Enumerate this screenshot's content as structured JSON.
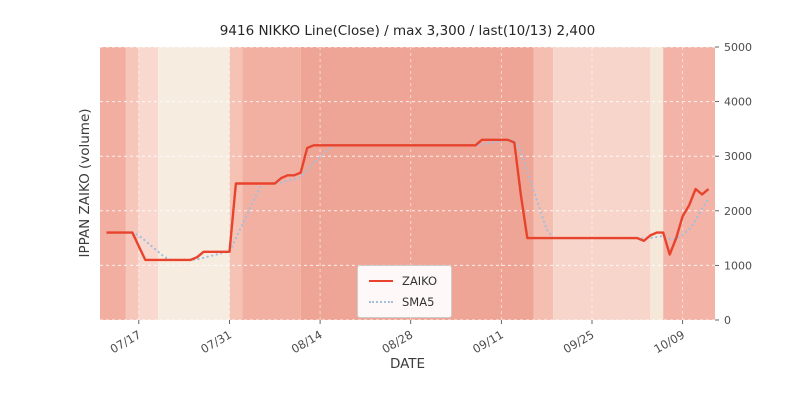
{
  "chart_data": {
    "type": "line",
    "title": "9416 NIKKO Line(Close) / max 3,300 / last(10/13) 2,400",
    "xlabel": "DATE",
    "ylabel": "IPPAN ZAIKO (volume)",
    "ylim": [
      0,
      5000
    ],
    "yticks": [
      0,
      1000,
      2000,
      3000,
      4000,
      5000
    ],
    "ytick_labels": [
      "0",
      "1000",
      "2000",
      "3000",
      "4000",
      "5000"
    ],
    "xtick_labels": [
      "07/17",
      "07/31",
      "08/14",
      "08/28",
      "09/11",
      "09/25",
      "10/09"
    ],
    "grid": true,
    "grid_color": "#ffffff",
    "legend_position": "lower center",
    "dates": [
      "07/12",
      "07/13",
      "07/14",
      "07/15",
      "07/16",
      "07/17",
      "07/18",
      "07/19",
      "07/20",
      "07/21",
      "07/22",
      "07/23",
      "07/24",
      "07/25",
      "07/26",
      "07/27",
      "07/28",
      "07/29",
      "07/30",
      "07/31",
      "08/01",
      "08/02",
      "08/03",
      "08/04",
      "08/05",
      "08/06",
      "08/07",
      "08/08",
      "08/09",
      "08/10",
      "08/11",
      "08/12",
      "08/13",
      "08/14",
      "08/15",
      "08/16",
      "08/17",
      "08/18",
      "08/19",
      "08/20",
      "08/21",
      "08/22",
      "08/23",
      "08/24",
      "08/25",
      "08/26",
      "08/27",
      "08/28",
      "08/29",
      "08/30",
      "08/31",
      "09/01",
      "09/02",
      "09/03",
      "09/04",
      "09/05",
      "09/06",
      "09/07",
      "09/08",
      "09/09",
      "09/10",
      "09/11",
      "09/12",
      "09/13",
      "09/14",
      "09/15",
      "09/16",
      "09/17",
      "09/18",
      "09/19",
      "09/20",
      "09/21",
      "09/22",
      "09/23",
      "09/24",
      "09/25",
      "09/26",
      "09/27",
      "09/28",
      "09/29",
      "09/30",
      "10/01",
      "10/02",
      "10/03",
      "10/04",
      "10/05",
      "10/06",
      "10/07",
      "10/08",
      "10/09",
      "10/10",
      "10/11",
      "10/12",
      "10/13"
    ],
    "series": [
      {
        "name": "ZAIKO",
        "color": "#e8432d",
        "style": "solid",
        "values": [
          1600,
          1600,
          1600,
          1600,
          1600,
          1350,
          1100,
          1100,
          1100,
          1100,
          1100,
          1100,
          1100,
          1100,
          1150,
          1250,
          1250,
          1250,
          1250,
          1250,
          2500,
          2500,
          2500,
          2500,
          2500,
          2500,
          2500,
          2600,
          2650,
          2650,
          2700,
          3150,
          3200,
          3200,
          3200,
          3200,
          3200,
          3200,
          3200,
          3200,
          3200,
          3200,
          3200,
          3200,
          3200,
          3200,
          3200,
          3200,
          3200,
          3200,
          3200,
          3200,
          3200,
          3200,
          3200,
          3200,
          3200,
          3200,
          3300,
          3300,
          3300,
          3300,
          3300,
          3250,
          2300,
          1500,
          1500,
          1500,
          1500,
          1500,
          1500,
          1500,
          1500,
          1500,
          1500,
          1500,
          1500,
          1500,
          1500,
          1500,
          1500,
          1500,
          1500,
          1450,
          1550,
          1600,
          1600,
          1200,
          1500,
          1900,
          2100,
          2400,
          2300,
          2400
        ]
      },
      {
        "name": "SMA5",
        "color": "#a3bfdf",
        "style": "dotted",
        "derived_from": "ZAIKO",
        "window": 5
      }
    ],
    "background_bands": [
      {
        "from": "start",
        "to": "07/15",
        "color": "#f2aea1"
      },
      {
        "from": "07/15",
        "to": "07/17",
        "color": "#f6c6ba"
      },
      {
        "from": "07/17",
        "to": "07/20",
        "color": "#f9d9cf"
      },
      {
        "from": "07/20",
        "to": "07/31",
        "color": "#f6ecdf"
      },
      {
        "from": "07/31",
        "to": "08/02",
        "color": "#f5c2b4"
      },
      {
        "from": "08/02",
        "to": "08/11",
        "color": "#f2b0a2"
      },
      {
        "from": "08/11",
        "to": "09/16",
        "color": "#efa595"
      },
      {
        "from": "09/16",
        "to": "09/19",
        "color": "#f4bfb0"
      },
      {
        "from": "09/19",
        "to": "10/04",
        "color": "#f8d5ca"
      },
      {
        "from": "10/04",
        "to": "10/06",
        "color": "#f6e8d8"
      },
      {
        "from": "10/06",
        "to": "end",
        "color": "#f3b3a6"
      }
    ]
  }
}
